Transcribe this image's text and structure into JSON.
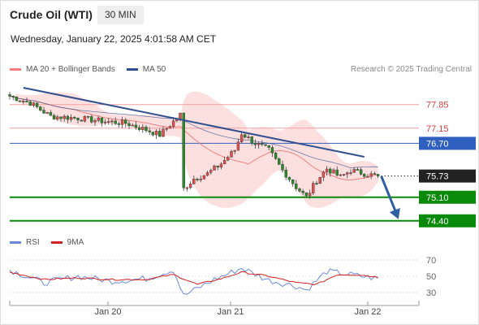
{
  "header": {
    "instrument": "Crude Oil (WTI)",
    "interval": "30 MIN",
    "datetime": "Wednesday, January 22, 2025 4:01:58 AM CET"
  },
  "legend": {
    "ma20_label": "MA 20 + Bollinger Bands",
    "ma50_label": "MA 50",
    "copyright": "Research © 2025 Trading Central"
  },
  "rsi_legend": {
    "rsi_label": "RSI",
    "ma_label": "9MA"
  },
  "colors": {
    "ma20": "#f08080",
    "ma50": "#2f4f8f",
    "bollinger_fill": "#fbd6d6",
    "candle_up": "#e05050",
    "candle_down": "#2a8a2a",
    "resistance": "#f3a0a0",
    "pivot": "#2f60c0",
    "support": "#0a8a0a",
    "current": "#222222",
    "trendline": "#2f4f8f",
    "arrow": "#2f5fa0",
    "rsi": "#6a8ad8",
    "rsi_ma": "#d02020"
  },
  "chart_data": [
    {
      "type": "candlestick",
      "x": [
        "Jan 20",
        "Jan 21",
        "Jan 22"
      ],
      "y_range": [
        74.25,
        78.35
      ],
      "levels": [
        {
          "value": 77.85,
          "label": "77.85",
          "kind": "resistance"
        },
        {
          "value": 77.15,
          "label": "77.15",
          "kind": "resistance"
        },
        {
          "value": 76.7,
          "label": "76.70",
          "kind": "pivot"
        },
        {
          "value": 75.73,
          "label": "75.73",
          "kind": "current"
        },
        {
          "value": 75.1,
          "label": "75.10",
          "kind": "support"
        },
        {
          "value": 74.4,
          "label": "74.40",
          "kind": "support"
        }
      ],
      "anchors": [
        {
          "i": 0,
          "v": 78.1
        },
        {
          "i": 6,
          "v": 77.9
        },
        {
          "i": 12,
          "v": 77.5
        },
        {
          "i": 20,
          "v": 77.45
        },
        {
          "i": 28,
          "v": 77.35
        },
        {
          "i": 34,
          "v": 77.3
        },
        {
          "i": 40,
          "v": 77.1
        },
        {
          "i": 44,
          "v": 76.95
        },
        {
          "i": 48,
          "v": 77.35
        },
        {
          "i": 50,
          "v": 77.55
        },
        {
          "i": 51,
          "v": 75.35
        },
        {
          "i": 54,
          "v": 75.65
        },
        {
          "i": 58,
          "v": 75.8
        },
        {
          "i": 62,
          "v": 76.1
        },
        {
          "i": 66,
          "v": 76.5
        },
        {
          "i": 68,
          "v": 77.0
        },
        {
          "i": 72,
          "v": 76.7
        },
        {
          "i": 76,
          "v": 76.5
        },
        {
          "i": 80,
          "v": 75.9
        },
        {
          "i": 84,
          "v": 75.4
        },
        {
          "i": 87,
          "v": 75.1
        },
        {
          "i": 90,
          "v": 75.6
        },
        {
          "i": 93,
          "v": 75.95
        },
        {
          "i": 97,
          "v": 75.7
        },
        {
          "i": 100,
          "v": 75.9
        },
        {
          "i": 104,
          "v": 75.8
        },
        {
          "i": 108,
          "v": 75.73
        }
      ],
      "trendline": [
        {
          "i": 4,
          "v": 78.35
        },
        {
          "i": 104,
          "v": 76.3
        }
      ],
      "forecast_arrow": [
        {
          "i": 108,
          "v": 75.73
        },
        {
          "i": 114,
          "v": 74.45
        }
      ]
    },
    {
      "type": "line",
      "title": "RSI",
      "y_ticks": [
        70,
        50,
        30
      ],
      "y_range": [
        20,
        80
      ],
      "series": [
        {
          "name": "RSI",
          "anchors": [
            {
              "i": 0,
              "v": 58
            },
            {
              "i": 10,
              "v": 42
            },
            {
              "i": 20,
              "v": 50
            },
            {
              "i": 30,
              "v": 44
            },
            {
              "i": 40,
              "v": 47
            },
            {
              "i": 48,
              "v": 58
            },
            {
              "i": 51,
              "v": 26
            },
            {
              "i": 60,
              "v": 46
            },
            {
              "i": 68,
              "v": 60
            },
            {
              "i": 76,
              "v": 45
            },
            {
              "i": 84,
              "v": 38
            },
            {
              "i": 87,
              "v": 33
            },
            {
              "i": 93,
              "v": 56
            },
            {
              "i": 100,
              "v": 52
            },
            {
              "i": 108,
              "v": 47
            }
          ]
        },
        {
          "name": "9MA",
          "anchors": [
            {
              "i": 0,
              "v": 55
            },
            {
              "i": 10,
              "v": 46
            },
            {
              "i": 20,
              "v": 48
            },
            {
              "i": 30,
              "v": 46
            },
            {
              "i": 40,
              "v": 46
            },
            {
              "i": 48,
              "v": 52
            },
            {
              "i": 55,
              "v": 40
            },
            {
              "i": 62,
              "v": 47
            },
            {
              "i": 68,
              "v": 55
            },
            {
              "i": 76,
              "v": 50
            },
            {
              "i": 84,
              "v": 42
            },
            {
              "i": 90,
              "v": 40
            },
            {
              "i": 96,
              "v": 52
            },
            {
              "i": 102,
              "v": 52
            },
            {
              "i": 108,
              "v": 49
            }
          ]
        }
      ]
    }
  ]
}
